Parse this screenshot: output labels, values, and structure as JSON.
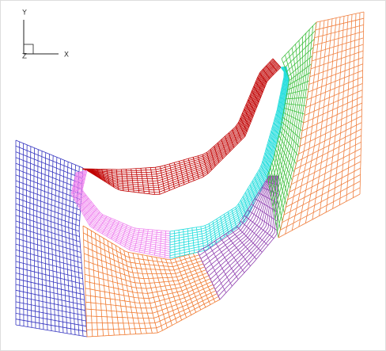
{
  "axes": {
    "y": "Y",
    "x": "X",
    "z": "Z"
  }
}
